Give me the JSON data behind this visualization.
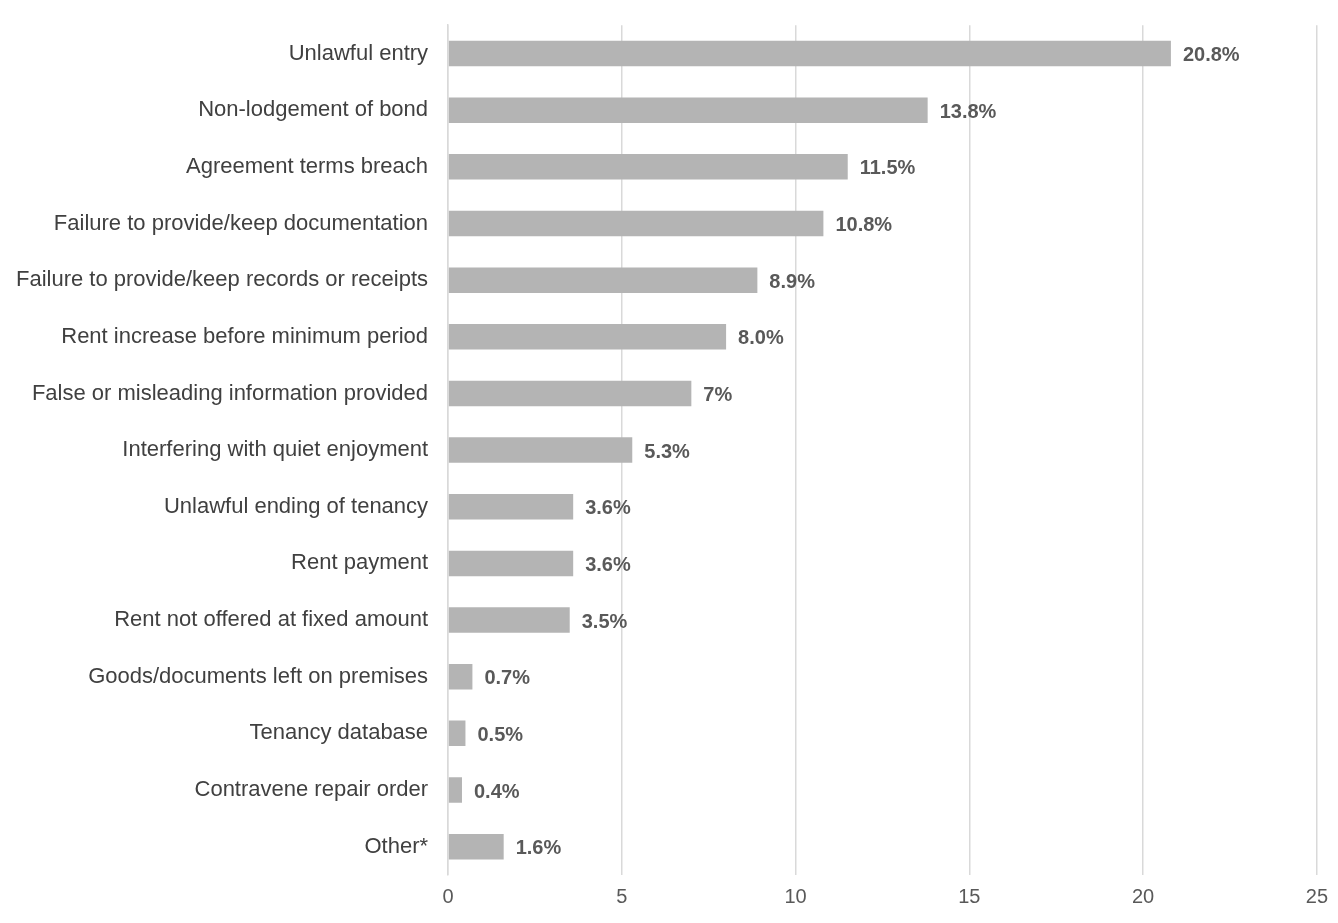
{
  "chart_data": {
    "type": "bar",
    "orientation": "horizontal",
    "categories": [
      "Unlawful entry",
      "Non-lodgement of bond",
      "Agreement terms breach",
      "Failure to provide/keep documentation",
      "Failure to provide/keep records or receipts",
      "Rent increase before minimum period",
      "False or misleading information provided",
      "Interfering with quiet enjoyment",
      "Unlawful ending of tenancy",
      "Rent payment",
      "Rent not offered at fixed amount",
      "Goods/documents left on premises",
      "Tenancy database",
      "Contravene repair order",
      "Other*"
    ],
    "values": [
      20.8,
      13.8,
      11.5,
      10.8,
      8.9,
      8.0,
      7,
      5.3,
      3.6,
      3.6,
      3.5,
      0.7,
      0.5,
      0.4,
      1.6
    ],
    "value_labels": [
      "20.8%",
      "13.8%",
      "11.5%",
      "10.8%",
      "8.9%",
      "8.0%",
      "7%",
      "5.3%",
      "3.6%",
      "3.6%",
      "3.5%",
      "0.7%",
      "0.5%",
      "0.4%",
      "1.6%"
    ],
    "color": "#b4b4b4",
    "xlim": [
      0,
      25
    ],
    "xticks": [
      0,
      5,
      10,
      15,
      20,
      25
    ],
    "grid": "x",
    "legend": false
  }
}
